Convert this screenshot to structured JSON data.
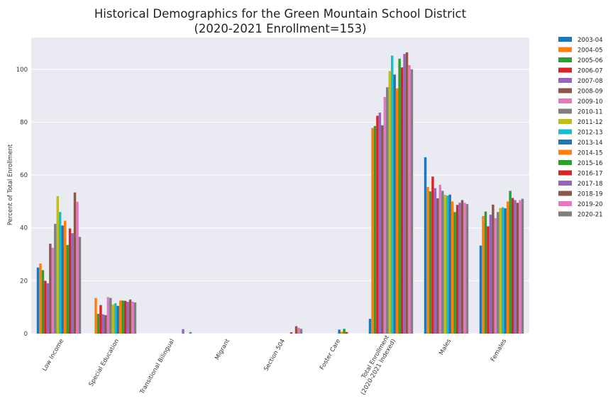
{
  "chart_data": {
    "type": "bar",
    "title": "Historical Demographics for the Green Mountain School District",
    "subtitle": "(2020-2021 Enrollment=153)",
    "xlabel": "",
    "ylabel": "Percent of Total Enrollment",
    "ylim": [
      0,
      112
    ],
    "yticks": [
      0,
      20,
      40,
      60,
      80,
      100
    ],
    "grid": true,
    "legend_position": "outside-right",
    "categories": [
      "Low Income",
      "Special Education",
      "Transitional Bilingual",
      "Migrant",
      "Section 504",
      "Foster Care",
      "Total Enrollment|(2020-2021 Indexed)",
      "Males",
      "Females"
    ],
    "series": [
      {
        "name": "2003-04",
        "color": "#1f77b4",
        "values": [
          25.0,
          0,
          0,
          0,
          0,
          0,
          5.6,
          66.7,
          33.3
        ]
      },
      {
        "name": "2004-05",
        "color": "#ff7f0e",
        "values": [
          26.5,
          13.5,
          0,
          0,
          0,
          0,
          77.8,
          55.5,
          44.5
        ]
      },
      {
        "name": "2005-06",
        "color": "#2ca02c",
        "values": [
          24.0,
          7.5,
          0,
          0,
          0,
          0,
          78.5,
          53.8,
          46.2
        ]
      },
      {
        "name": "2006-07",
        "color": "#d62728",
        "values": [
          20.0,
          10.8,
          0,
          0,
          0,
          0,
          82.4,
          59.4,
          40.6
        ]
      },
      {
        "name": "2007-08",
        "color": "#9467bd",
        "values": [
          19.0,
          7.3,
          0,
          0,
          0,
          0,
          83.6,
          55.0,
          45.0
        ]
      },
      {
        "name": "2008-09",
        "color": "#8c564b",
        "values": [
          34.0,
          7.0,
          0,
          0,
          0,
          0,
          78.8,
          51.2,
          48.8
        ]
      },
      {
        "name": "2009-10",
        "color": "#e377c2",
        "values": [
          32.5,
          13.8,
          0,
          0,
          0,
          0,
          89.5,
          56.3,
          43.7
        ]
      },
      {
        "name": "2010-11",
        "color": "#7f7f7f",
        "values": [
          41.5,
          13.5,
          0,
          0,
          0,
          0,
          93.2,
          54.0,
          46.0
        ]
      },
      {
        "name": "2011-12",
        "color": "#bcbd22",
        "values": [
          52.0,
          11.0,
          0,
          0,
          0,
          0,
          99.3,
          52.5,
          47.5
        ]
      },
      {
        "name": "2012-13",
        "color": "#17becf",
        "values": [
          46.0,
          11.5,
          0,
          0,
          0,
          0,
          105.2,
          52.2,
          47.8
        ]
      },
      {
        "name": "2013-14",
        "color": "#1f77b4",
        "values": [
          40.9,
          10.5,
          0,
          0,
          0,
          1.5,
          98.0,
          52.6,
          47.4
        ]
      },
      {
        "name": "2014-15",
        "color": "#ff7f0e",
        "values": [
          42.7,
          12.5,
          0,
          0,
          0,
          0.7,
          92.8,
          50.0,
          50.0
        ]
      },
      {
        "name": "2015-16",
        "color": "#2ca02c",
        "values": [
          33.5,
          12.5,
          0,
          0,
          0,
          1.8,
          104.0,
          46.0,
          54.0
        ]
      },
      {
        "name": "2016-17",
        "color": "#d62728",
        "values": [
          39.8,
          12.4,
          0,
          0,
          0.5,
          0.6,
          100.7,
          48.7,
          51.3
        ]
      },
      {
        "name": "2017-18",
        "color": "#9467bd",
        "values": [
          38.0,
          12.0,
          1.7,
          0,
          0,
          0,
          105.8,
          49.5,
          50.5
        ]
      },
      {
        "name": "2018-19",
        "color": "#8c564b",
        "values": [
          53.4,
          12.9,
          0,
          0,
          2.8,
          0,
          106.4,
          50.5,
          49.5
        ]
      },
      {
        "name": "2019-20",
        "color": "#e377c2",
        "values": [
          49.9,
          12.1,
          0,
          0,
          2.2,
          0,
          101.6,
          49.5,
          50.5
        ]
      },
      {
        "name": "2020-21",
        "color": "#7f7f7f",
        "values": [
          36.6,
          11.8,
          0.6,
          0,
          1.8,
          0,
          100.0,
          49.0,
          51.0
        ]
      }
    ]
  }
}
